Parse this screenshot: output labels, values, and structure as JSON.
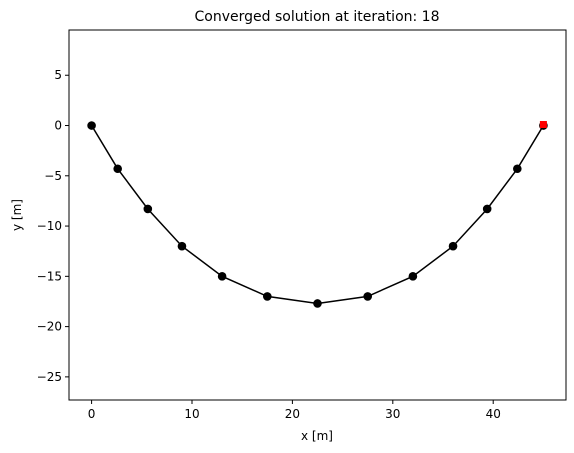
{
  "chart_data": {
    "type": "line",
    "title": "Converged solution at iteration: 18",
    "xlabel": "x [m]",
    "ylabel": "y [m]",
    "xlim": [
      -2.25,
      47.25
    ],
    "ylim": [
      -27.3,
      9.5
    ],
    "xticks": [
      0,
      10,
      20,
      30,
      40
    ],
    "yticks": [
      5,
      0,
      -5,
      -10,
      -15,
      -20,
      -25
    ],
    "xtick_labels": [
      "0",
      "10",
      "20",
      "30",
      "40"
    ],
    "ytick_labels": [
      "5",
      "0",
      "−5",
      "−10",
      "−15",
      "−20",
      "−25"
    ],
    "grid": false,
    "series": [
      {
        "color": "#000000",
        "marker": "circle",
        "x": [
          0.0,
          2.6,
          5.6,
          9.0,
          13.0,
          17.5,
          22.5,
          27.5,
          32.0,
          36.0,
          39.4,
          42.4,
          45.0
        ],
        "y": [
          0.0,
          -4.3,
          -8.3,
          -12.0,
          -15.0,
          -17.0,
          -17.7,
          -17.0,
          -15.0,
          -12.0,
          -8.3,
          -4.3,
          0.0
        ]
      }
    ],
    "highlight_point": {
      "x": 45.0,
      "y": 0.1,
      "color": "#ff0000",
      "marker": "square"
    }
  }
}
